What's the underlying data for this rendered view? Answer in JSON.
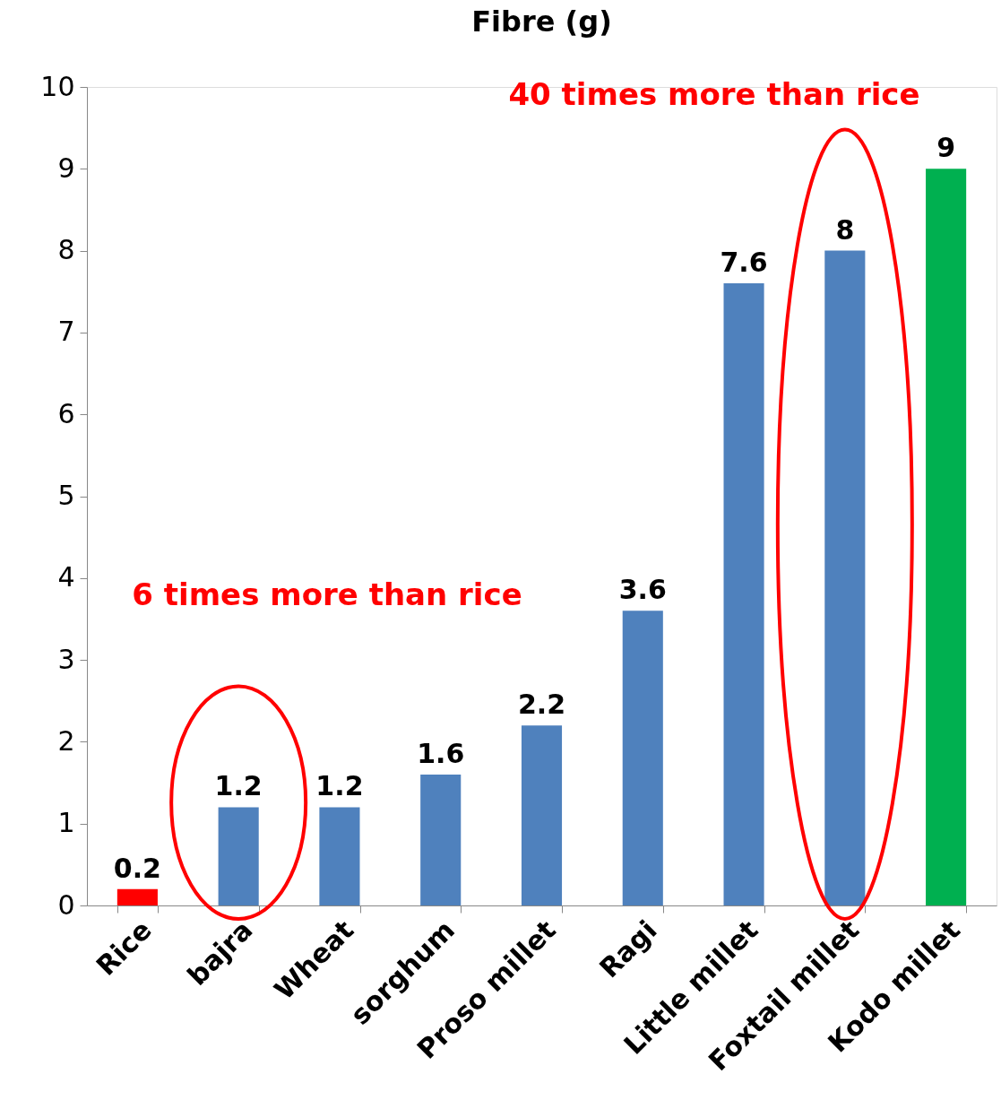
{
  "chart_data": {
    "type": "bar",
    "title": "Fibre (g)",
    "categories": [
      "Rice",
      "bajra",
      "Wheat",
      "sorghum",
      "Proso millet",
      "Ragi",
      "Little millet",
      "Foxtail millet",
      "Kodo millet"
    ],
    "values": [
      0.2,
      1.2,
      1.2,
      1.6,
      2.2,
      3.6,
      7.6,
      8,
      9
    ],
    "colors": [
      "#ff0000",
      "#4f81bd",
      "#4f81bd",
      "#4f81bd",
      "#4f81bd",
      "#4f81bd",
      "#4f81bd",
      "#4f81bd",
      "#00b050"
    ],
    "ylim": [
      0,
      10
    ],
    "yticks": [
      0,
      1,
      2,
      3,
      4,
      5,
      6,
      7,
      8,
      9,
      10
    ],
    "grid": false,
    "data_labels": true,
    "annotations": [
      "6 times more than rice",
      "40 times more than rice"
    ]
  }
}
